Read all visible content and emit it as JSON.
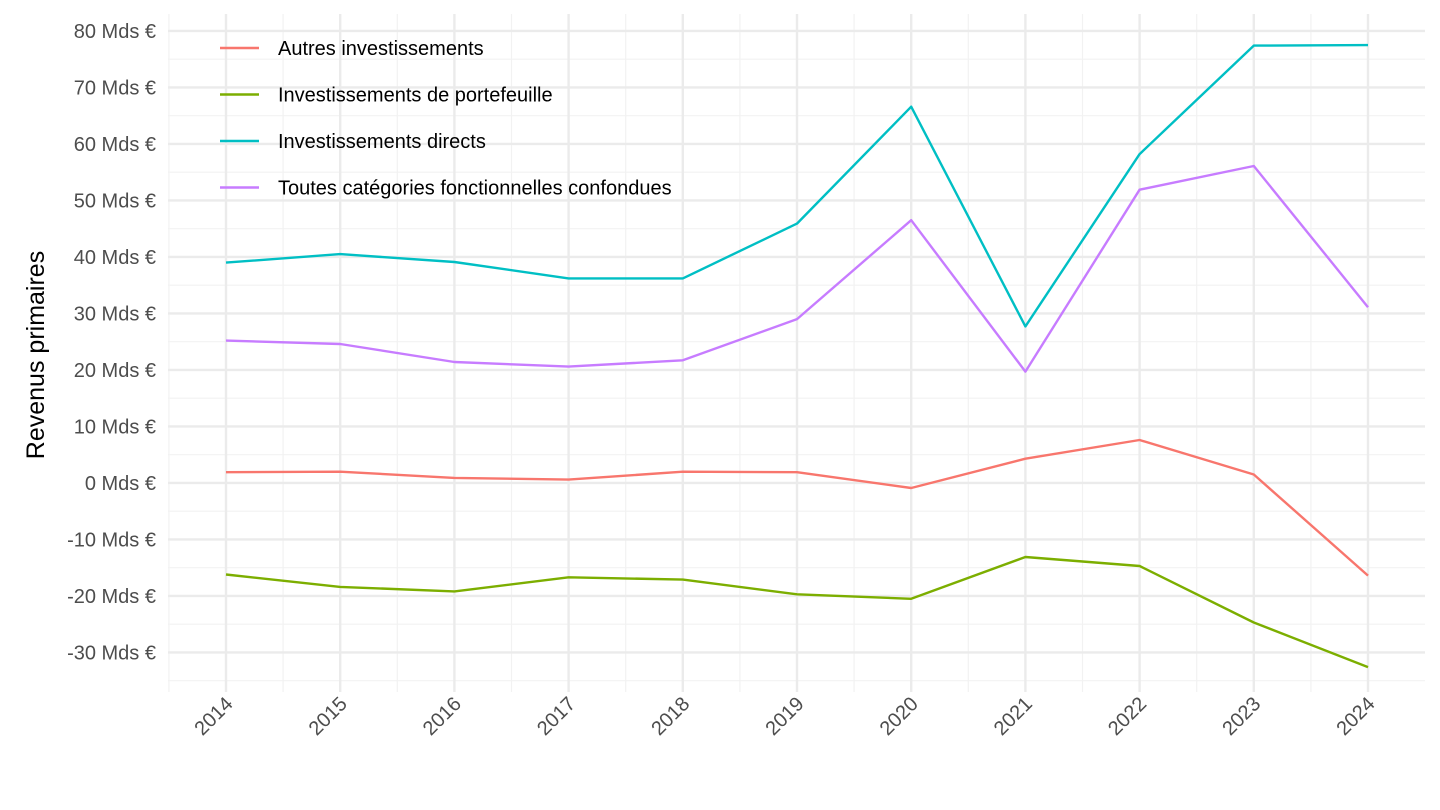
{
  "chart_data": {
    "type": "line",
    "title": "",
    "xlabel": "",
    "ylabel": "Revenus primaires",
    "x": [
      "2014",
      "2015",
      "2016",
      "2017",
      "2018",
      "2019",
      "2020",
      "2021",
      "2022",
      "2023",
      "2024"
    ],
    "ylim": [
      -37,
      83
    ],
    "y_ticks": [
      {
        "value": 80,
        "label": "80 Mds €"
      },
      {
        "value": 70,
        "label": "70 Mds €"
      },
      {
        "value": 60,
        "label": "60 Mds €"
      },
      {
        "value": 50,
        "label": "50 Mds €"
      },
      {
        "value": 40,
        "label": "40 Mds €"
      },
      {
        "value": 30,
        "label": "30 Mds €"
      },
      {
        "value": 20,
        "label": "20 Mds €"
      },
      {
        "value": 10,
        "label": "10 Mds €"
      },
      {
        "value": 0,
        "label": "0 Mds €"
      },
      {
        "value": -10,
        "label": "-10 Mds €"
      },
      {
        "value": -20,
        "label": "-20 Mds €"
      },
      {
        "value": -30,
        "label": "-30 Mds €"
      }
    ],
    "grid": true,
    "legend_position": "top-left",
    "series": [
      {
        "name": "Autres investissements",
        "color": "#F8766D",
        "values": [
          1.9,
          2.0,
          0.9,
          0.6,
          2.0,
          1.9,
          -0.9,
          4.3,
          7.6,
          1.5,
          -16.4
        ]
      },
      {
        "name": "Investissements de portefeuille",
        "color": "#7CAE00",
        "values": [
          -16.2,
          -18.4,
          -19.2,
          -16.7,
          -17.1,
          -19.7,
          -20.5,
          -13.1,
          -14.7,
          -24.7,
          -32.6
        ]
      },
      {
        "name": "Investissements directs",
        "color": "#00BFC4",
        "values": [
          39.0,
          40.5,
          39.1,
          36.2,
          36.2,
          45.9,
          66.6,
          27.7,
          58.2,
          77.4,
          77.5
        ]
      },
      {
        "name": "Toutes catégories fonctionnelles confondues",
        "color": "#C77CFF",
        "values": [
          25.2,
          24.6,
          21.4,
          20.6,
          21.7,
          29.0,
          46.5,
          19.7,
          51.9,
          56.1,
          31.1
        ]
      }
    ]
  }
}
